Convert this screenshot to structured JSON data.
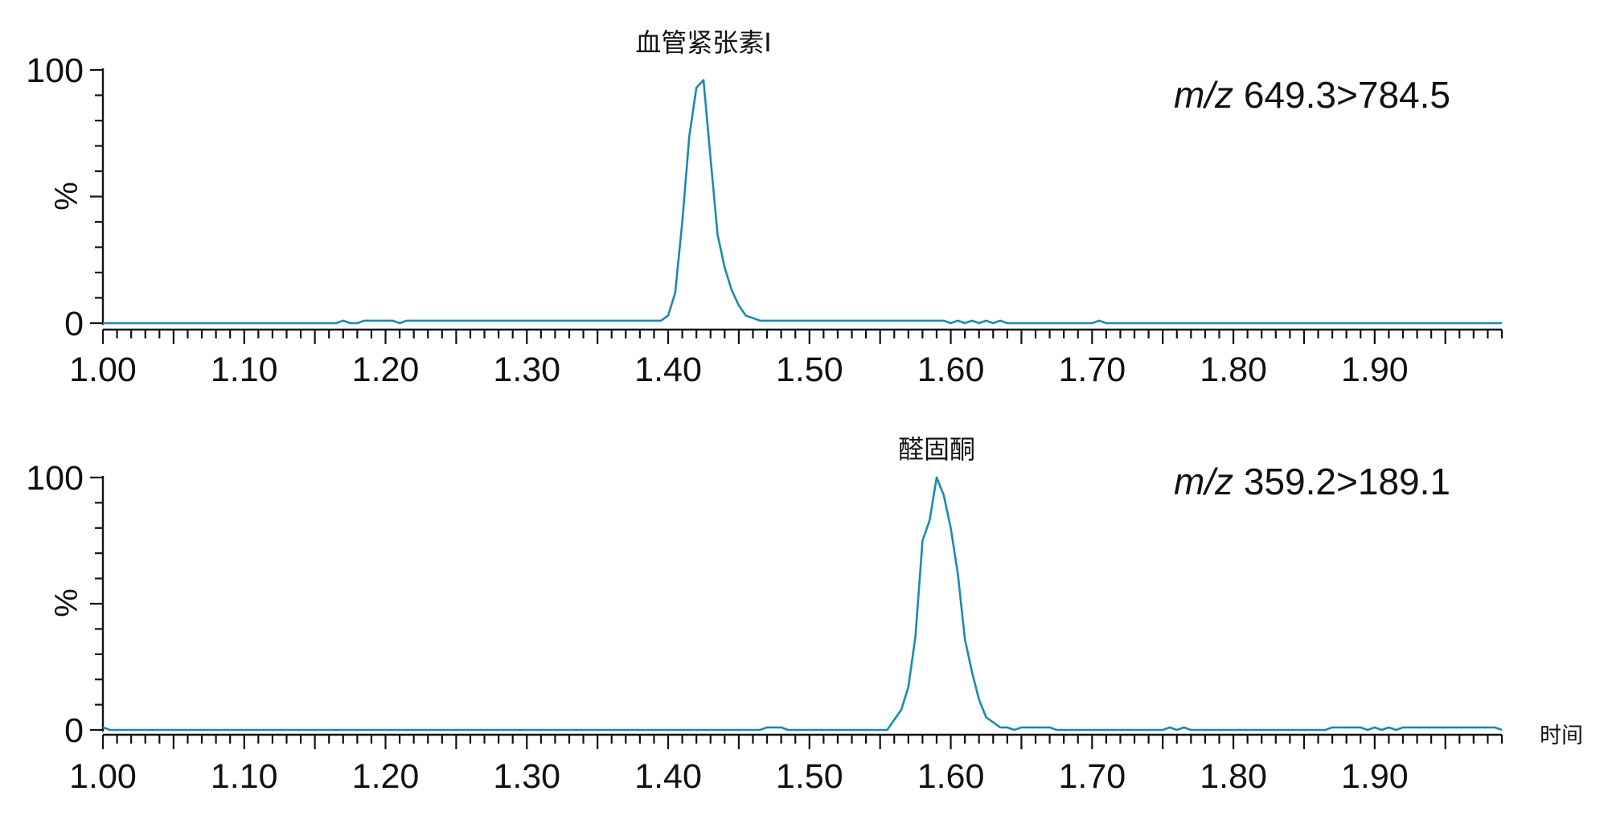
{
  "chart_data": [
    {
      "type": "line",
      "peak_label": "血管紧张素I",
      "mz_prefix": "m/z",
      "mz_value": "649.3>784.5",
      "ylabel": "%",
      "xlabel": "",
      "xlim": [
        1.0,
        1.99
      ],
      "ylim": [
        0,
        100
      ],
      "y_ticks": [
        "0",
        "100"
      ],
      "x_ticks": [
        "1.00",
        "1.10",
        "1.20",
        "1.30",
        "1.40",
        "1.50",
        "1.60",
        "1.70",
        "1.80",
        "1.90"
      ],
      "x_tick_values": [
        1.0,
        1.1,
        1.2,
        1.3,
        1.4,
        1.5,
        1.6,
        1.7,
        1.8,
        1.9
      ],
      "series": [
        {
          "color": "#1a8bb0",
          "x": [
            1.0,
            1.1,
            1.165,
            1.17,
            1.175,
            1.18,
            1.185,
            1.205,
            1.21,
            1.215,
            1.3,
            1.395,
            1.4,
            1.405,
            1.41,
            1.415,
            1.42,
            1.425,
            1.43,
            1.435,
            1.44,
            1.445,
            1.45,
            1.455,
            1.46,
            1.465,
            1.47,
            1.475,
            1.48,
            1.485,
            1.5,
            1.55,
            1.595,
            1.6,
            1.605,
            1.61,
            1.615,
            1.62,
            1.625,
            1.63,
            1.635,
            1.64,
            1.645,
            1.7,
            1.705,
            1.71,
            1.8,
            1.9,
            1.99
          ],
          "y": [
            0,
            0,
            0,
            1,
            0,
            0,
            1,
            1,
            0,
            1,
            1,
            1,
            3,
            12,
            40,
            74,
            93,
            96,
            65,
            35,
            22,
            13,
            7,
            3,
            2,
            1,
            1,
            1,
            1,
            1,
            1,
            1,
            1,
            0,
            1,
            0,
            1,
            0,
            1,
            0,
            1,
            0,
            0,
            0,
            1,
            0,
            0,
            0,
            0
          ]
        }
      ]
    },
    {
      "type": "line",
      "peak_label": "醛固酮",
      "mz_prefix": "m/z",
      "mz_value": "359.2>189.1",
      "ylabel": "%",
      "xlabel": "时间",
      "xlim": [
        1.0,
        1.99
      ],
      "ylim": [
        0,
        100
      ],
      "y_ticks": [
        "0",
        "100"
      ],
      "x_ticks": [
        "1.00",
        "1.10",
        "1.20",
        "1.30",
        "1.40",
        "1.50",
        "1.60",
        "1.70",
        "1.80",
        "1.90"
      ],
      "x_tick_values": [
        1.0,
        1.1,
        1.2,
        1.3,
        1.4,
        1.5,
        1.6,
        1.7,
        1.8,
        1.9
      ],
      "series": [
        {
          "color": "#1a8bb0",
          "x": [
            1.0,
            1.005,
            1.01,
            1.1,
            1.3,
            1.465,
            1.47,
            1.475,
            1.48,
            1.485,
            1.5,
            1.555,
            1.56,
            1.565,
            1.57,
            1.575,
            1.58,
            1.585,
            1.59,
            1.595,
            1.6,
            1.605,
            1.61,
            1.615,
            1.62,
            1.625,
            1.63,
            1.635,
            1.64,
            1.645,
            1.65,
            1.655,
            1.66,
            1.665,
            1.67,
            1.675,
            1.68,
            1.685,
            1.69,
            1.75,
            1.755,
            1.76,
            1.765,
            1.77,
            1.865,
            1.87,
            1.89,
            1.895,
            1.9,
            1.905,
            1.91,
            1.915,
            1.92,
            1.925,
            1.93,
            1.985,
            1.99
          ],
          "y": [
            1,
            0,
            0,
            0,
            0,
            0,
            1,
            1,
            1,
            0,
            0,
            0,
            4,
            8,
            17,
            37,
            75,
            83,
            100,
            93,
            80,
            62,
            36,
            23,
            12,
            5,
            3,
            1,
            1,
            0,
            1,
            1,
            1,
            1,
            1,
            0,
            0,
            0,
            0,
            0,
            1,
            0,
            1,
            0,
            0,
            1,
            1,
            0,
            1,
            0,
            1,
            0,
            1,
            1,
            1,
            1,
            0
          ]
        }
      ]
    }
  ]
}
